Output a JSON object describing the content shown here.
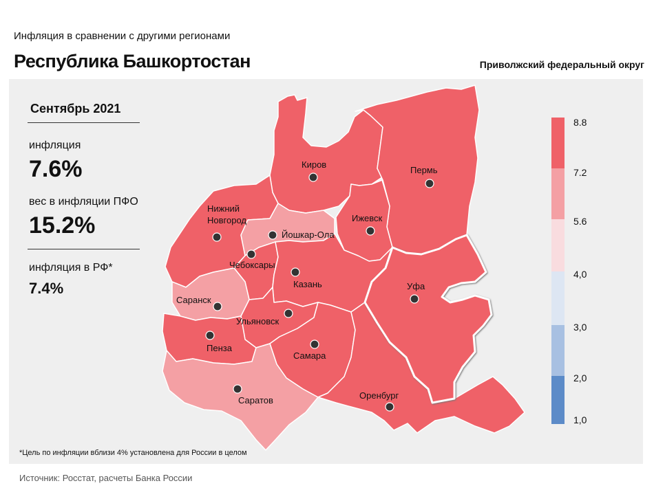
{
  "header": {
    "subtitle": "Инфляция  в сравнении  с другими  регионами",
    "title": "Республика Башкортостан",
    "district": "Приволжский федеральный округ"
  },
  "stats": {
    "month": "Сентябрь 2021",
    "inflation_label": "инфляция",
    "inflation_value": "7.6%",
    "weight_label": "вес в инфляции  ПФО",
    "weight_value": "15.2%",
    "rf_label": "инфляция  в РФ*",
    "rf_value": "7.4%"
  },
  "legend": {
    "breaks": [
      "8.8",
      "7.2",
      "5.6",
      "4,0",
      "3,0",
      "2,0",
      "1,0"
    ],
    "colors": [
      "#ef6168",
      "#f4a0a4",
      "#f9dcdf",
      "#dde6f3",
      "#a8c0e2",
      "#5c8bc8"
    ]
  },
  "map": {
    "colors": {
      "high": "#ef6168",
      "mid": "#f4a0a4"
    },
    "cities": {
      "kirov": "Киров",
      "perm": "Пермь",
      "izhevsk": "Ижевск",
      "n_novgorod_1": "Нижний",
      "n_novgorod_2": "Новгород",
      "yoshkar_ola": "Йошкар-Ола",
      "cheboksary": "Чебоксары",
      "kazan": "Казань",
      "ufa": "Уфа",
      "saransk": "Саранск",
      "ulyanovsk": "Ульяновск",
      "penza": "Пенза",
      "samara": "Самара",
      "orenburg": "Оренбург",
      "saratov": "Саратов"
    }
  },
  "footnote": "*Цель по инфляции вблизи 4% установлена для России в целом",
  "source": "Источник: Росстат, расчеты Банка России"
}
